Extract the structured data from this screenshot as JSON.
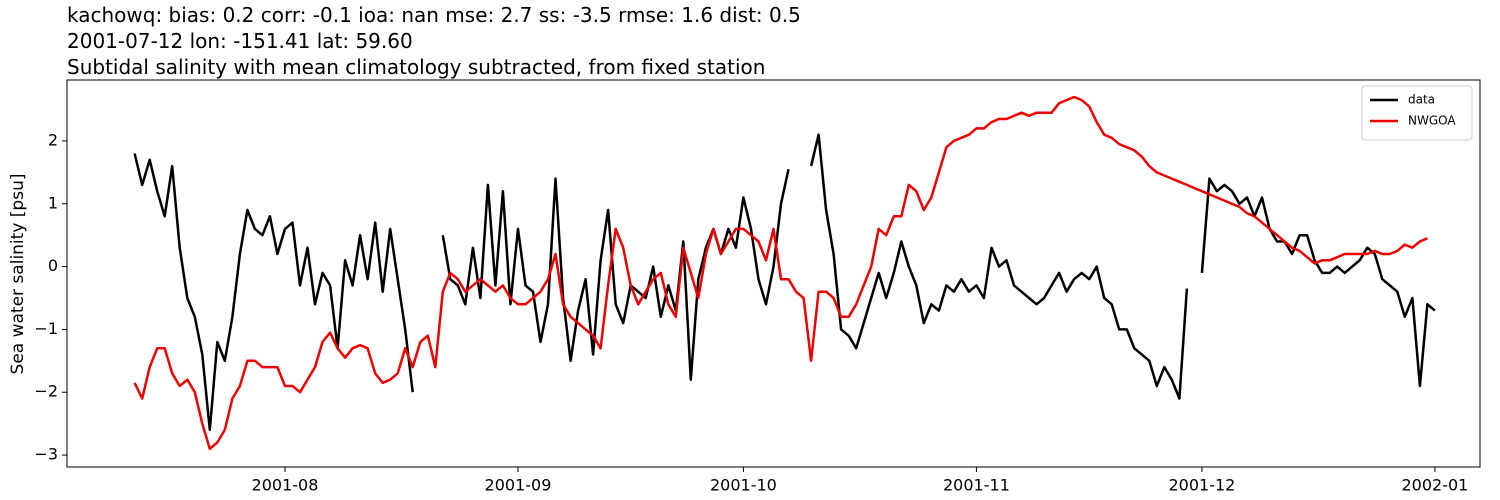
{
  "chart_data": {
    "type": "line",
    "title_lines": [
      "kachowq: bias: 0.2  corr: -0.1  ioa: nan  mse: 2.7  ss: -3.5  rmse: 1.6  dist: 0.5",
      "2001-07-12 lon: -151.41 lat: 59.60",
      "Subtidal salinity with mean climatology subtracted, from fixed station"
    ],
    "ylabel": "Sea water salinity [psu]",
    "x": [
      "2001-07-12",
      "2001-07-13",
      "2001-07-14",
      "2001-07-15",
      "2001-07-16",
      "2001-07-17",
      "2001-07-18",
      "2001-07-19",
      "2001-07-20",
      "2001-07-21",
      "2001-07-22",
      "2001-07-23",
      "2001-07-24",
      "2001-07-25",
      "2001-07-26",
      "2001-07-27",
      "2001-07-28",
      "2001-07-29",
      "2001-07-30",
      "2001-07-31",
      "2001-08-01",
      "2001-08-02",
      "2001-08-03",
      "2001-08-04",
      "2001-08-05",
      "2001-08-06",
      "2001-08-07",
      "2001-08-08",
      "2001-08-09",
      "2001-08-10",
      "2001-08-11",
      "2001-08-12",
      "2001-08-13",
      "2001-08-14",
      "2001-08-15",
      "2001-08-16",
      "2001-08-17",
      "2001-08-18",
      "2001-08-19",
      "2001-08-20",
      "2001-08-21",
      "2001-08-22",
      "2001-08-23",
      "2001-08-24",
      "2001-08-25",
      "2001-08-26",
      "2001-08-27",
      "2001-08-28",
      "2001-08-29",
      "2001-08-30",
      "2001-08-31",
      "2001-09-01",
      "2001-09-02",
      "2001-09-03",
      "2001-09-04",
      "2001-09-05",
      "2001-09-06",
      "2001-09-07",
      "2001-09-08",
      "2001-09-09",
      "2001-09-10",
      "2001-09-11",
      "2001-09-12",
      "2001-09-13",
      "2001-09-14",
      "2001-09-15",
      "2001-09-16",
      "2001-09-17",
      "2001-09-18",
      "2001-09-19",
      "2001-09-20",
      "2001-09-21",
      "2001-09-22",
      "2001-09-23",
      "2001-09-24",
      "2001-09-25",
      "2001-09-26",
      "2001-09-27",
      "2001-09-28",
      "2001-09-29",
      "2001-09-30",
      "2001-10-01",
      "2001-10-02",
      "2001-10-03",
      "2001-10-04",
      "2001-10-05",
      "2001-10-06",
      "2001-10-07",
      "2001-10-08",
      "2001-10-09",
      "2001-10-10",
      "2001-10-11",
      "2001-10-12",
      "2001-10-13",
      "2001-10-14",
      "2001-10-15",
      "2001-10-16",
      "2001-10-17",
      "2001-10-18",
      "2001-10-19",
      "2001-10-20",
      "2001-10-21",
      "2001-10-22",
      "2001-10-23",
      "2001-10-24",
      "2001-10-25",
      "2001-10-26",
      "2001-10-27",
      "2001-10-28",
      "2001-10-29",
      "2001-10-30",
      "2001-10-31",
      "2001-11-01",
      "2001-11-02",
      "2001-11-03",
      "2001-11-04",
      "2001-11-05",
      "2001-11-06",
      "2001-11-07",
      "2001-11-08",
      "2001-11-09",
      "2001-11-10",
      "2001-11-11",
      "2001-11-12",
      "2001-11-13",
      "2001-11-14",
      "2001-11-15",
      "2001-11-16",
      "2001-11-17",
      "2001-11-18",
      "2001-11-19",
      "2001-11-20",
      "2001-11-21",
      "2001-11-22",
      "2001-11-23",
      "2001-11-24",
      "2001-11-25",
      "2001-11-26",
      "2001-11-27",
      "2001-11-28",
      "2001-11-29",
      "2001-11-30",
      "2001-12-01",
      "2001-12-02",
      "2001-12-03",
      "2001-12-04",
      "2001-12-05",
      "2001-12-06",
      "2001-12-07",
      "2001-12-08",
      "2001-12-09",
      "2001-12-10",
      "2001-12-11",
      "2001-12-12",
      "2001-12-13",
      "2001-12-14",
      "2001-12-15",
      "2001-12-16",
      "2001-12-17",
      "2001-12-18",
      "2001-12-19",
      "2001-12-20",
      "2001-12-21",
      "2001-12-22",
      "2001-12-23",
      "2001-12-24",
      "2001-12-25",
      "2001-12-26",
      "2001-12-27",
      "2001-12-28",
      "2001-12-29",
      "2001-12-30",
      "2001-12-31",
      "2002-01-01"
    ],
    "series": [
      {
        "name": "data",
        "color": "#000000",
        "values": [
          1.8,
          1.3,
          1.7,
          1.2,
          0.8,
          1.6,
          0.3,
          -0.5,
          -0.8,
          -1.4,
          -2.6,
          -1.2,
          -1.5,
          -0.8,
          0.2,
          0.9,
          0.6,
          0.5,
          0.8,
          0.2,
          0.6,
          0.7,
          -0.3,
          0.3,
          -0.6,
          -0.1,
          -0.3,
          -1.3,
          0.1,
          -0.3,
          0.5,
          -0.2,
          0.7,
          -0.4,
          0.6,
          -0.2,
          -1.0,
          -2.0,
          null,
          null,
          null,
          0.5,
          -0.2,
          -0.3,
          -0.6,
          0.3,
          -0.5,
          1.3,
          -0.3,
          1.2,
          -0.6,
          0.6,
          -0.3,
          -0.4,
          -1.2,
          -0.6,
          1.4,
          -0.5,
          -1.5,
          -0.7,
          -0.2,
          -1.4,
          0.1,
          0.9,
          -0.6,
          -0.9,
          -0.3,
          -0.4,
          -0.5,
          0.0,
          -0.8,
          -0.3,
          -0.7,
          0.4,
          -1.8,
          -0.2,
          0.3,
          0.6,
          0.2,
          0.6,
          0.3,
          1.1,
          0.6,
          -0.2,
          -0.6,
          0.0,
          1.0,
          1.55,
          null,
          null,
          1.6,
          2.1,
          0.9,
          0.2,
          -1.0,
          -1.1,
          -1.3,
          -0.9,
          -0.5,
          -0.1,
          -0.5,
          -0.1,
          0.4,
          0.0,
          -0.3,
          -0.9,
          -0.6,
          -0.7,
          -0.3,
          -0.4,
          -0.2,
          -0.4,
          -0.3,
          -0.5,
          0.3,
          0.0,
          0.1,
          -0.3,
          -0.4,
          -0.5,
          -0.6,
          -0.5,
          -0.3,
          -0.1,
          -0.4,
          -0.2,
          -0.1,
          -0.2,
          0.0,
          -0.5,
          -0.6,
          -1.0,
          -1.0,
          -1.3,
          -1.4,
          -1.5,
          -1.9,
          -1.6,
          -1.8,
          -2.1,
          -0.35,
          null,
          -0.1,
          1.4,
          1.2,
          1.3,
          1.2,
          1.0,
          1.1,
          0.8,
          1.1,
          0.6,
          0.4,
          0.4,
          0.2,
          0.5,
          0.5,
          0.1,
          -0.1,
          -0.1,
          0.0,
          -0.1,
          0.0,
          0.1,
          0.3,
          0.2,
          -0.2,
          -0.3,
          -0.4,
          -0.8,
          -0.5,
          -1.9,
          -0.6,
          -0.7
        ]
      },
      {
        "name": "NWGOA",
        "color": "#ee0000",
        "values": [
          -1.85,
          -2.1,
          -1.6,
          -1.3,
          -1.3,
          -1.7,
          -1.9,
          -1.8,
          -2.0,
          -2.5,
          -2.9,
          -2.8,
          -2.6,
          -2.1,
          -1.9,
          -1.5,
          -1.5,
          -1.6,
          -1.6,
          -1.6,
          -1.9,
          -1.9,
          -2.0,
          -1.8,
          -1.6,
          -1.2,
          -1.05,
          -1.3,
          -1.45,
          -1.3,
          -1.25,
          -1.3,
          -1.7,
          -1.85,
          -1.8,
          -1.7,
          -1.3,
          -1.6,
          -1.2,
          -1.1,
          -1.6,
          -0.4,
          -0.1,
          -0.2,
          -0.4,
          -0.3,
          -0.2,
          -0.3,
          -0.4,
          -0.3,
          -0.5,
          -0.6,
          -0.6,
          -0.5,
          -0.4,
          -0.2,
          0.2,
          -0.6,
          -0.8,
          -0.9,
          -1.0,
          -1.1,
          -1.3,
          -0.3,
          0.6,
          0.3,
          -0.3,
          -0.6,
          -0.4,
          -0.2,
          -0.1,
          -0.6,
          -0.8,
          0.3,
          -0.1,
          -0.5,
          0.2,
          0.6,
          0.2,
          0.4,
          0.6,
          0.6,
          0.5,
          0.4,
          0.1,
          0.6,
          -0.2,
          -0.2,
          -0.4,
          -0.5,
          -1.5,
          -0.4,
          -0.4,
          -0.5,
          -0.8,
          -0.8,
          -0.6,
          -0.3,
          0.0,
          0.6,
          0.5,
          0.8,
          0.8,
          1.3,
          1.2,
          0.9,
          1.1,
          1.5,
          1.9,
          2.0,
          2.05,
          2.1,
          2.2,
          2.2,
          2.3,
          2.35,
          2.35,
          2.4,
          2.45,
          2.4,
          2.45,
          2.45,
          2.45,
          2.6,
          2.65,
          2.7,
          2.65,
          2.55,
          2.3,
          2.1,
          2.05,
          1.95,
          1.9,
          1.85,
          1.75,
          1.6,
          1.5,
          1.45,
          1.4,
          1.35,
          1.3,
          1.25,
          1.2,
          1.15,
          1.1,
          1.05,
          1.0,
          0.95,
          0.85,
          0.8,
          0.7,
          0.6,
          0.5,
          0.4,
          0.3,
          0.25,
          0.15,
          0.05,
          0.1,
          0.1,
          0.15,
          0.2,
          0.2,
          0.2,
          0.2,
          0.25,
          0.2,
          0.2,
          0.25,
          0.35,
          0.3,
          0.4,
          0.45,
          null
        ]
      }
    ],
    "xlim": [
      "2001-07-03",
      "2002-01-07"
    ],
    "xticks": [
      {
        "value": "2001-08-01",
        "label": "2001-08"
      },
      {
        "value": "2001-09-01",
        "label": "2001-09"
      },
      {
        "value": "2001-10-01",
        "label": "2001-10"
      },
      {
        "value": "2001-11-01",
        "label": "2001-11"
      },
      {
        "value": "2001-12-01",
        "label": "2001-12"
      },
      {
        "value": "2002-01-01",
        "label": "2002-01"
      }
    ],
    "ylim": [
      -3.19,
      2.97
    ],
    "yticks": [
      {
        "value": -3,
        "label": "−3"
      },
      {
        "value": -2,
        "label": "−2"
      },
      {
        "value": -1,
        "label": "−1"
      },
      0,
      1,
      2
    ],
    "grid": false,
    "legend": "upper right"
  }
}
